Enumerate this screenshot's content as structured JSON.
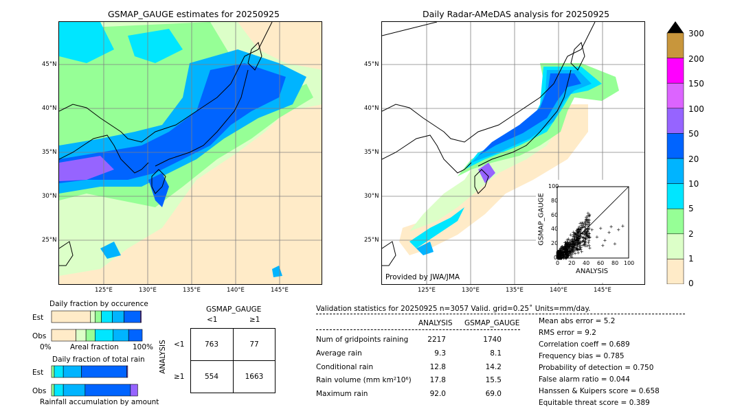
{
  "left_map": {
    "title": "GSMAP_GAUGE estimates for 20250925",
    "lat_ticks": [
      "45°N",
      "40°N",
      "35°N",
      "30°N",
      "25°N"
    ],
    "lon_ticks": [
      "125°E",
      "130°E",
      "135°E",
      "140°E",
      "145°E"
    ]
  },
  "right_map": {
    "title": "Daily Radar-AMeDAS analysis for 20250925",
    "lat_ticks": [
      "45°N",
      "40°N",
      "35°N",
      "30°N",
      "25°N"
    ],
    "lon_ticks": [
      "125°E",
      "130°E",
      "135°E",
      "140°E",
      "145°E"
    ],
    "credit": "Provided by JWA/JMA"
  },
  "colorbar": {
    "labels": [
      "300",
      "200",
      "150",
      "100",
      "50",
      "20",
      "10",
      "5",
      "2",
      "1",
      "0"
    ],
    "colors": [
      "#c8963c",
      "#ff00ff",
      "#dc64ff",
      "#9664ff",
      "#0064ff",
      "#00b4ff",
      "#00e6ff",
      "#96ff96",
      "#dcffc8",
      "#ffebc8"
    ]
  },
  "chart_data": [
    {
      "type": "scatter",
      "title": "",
      "xlabel": "ANALYSIS",
      "ylabel": "GSMAP_GAUGE",
      "xlim": [
        0,
        100
      ],
      "ylim": [
        0,
        100
      ],
      "x_ticks": [
        "0",
        "20",
        "40",
        "60",
        "80",
        "100"
      ],
      "y_ticks": [
        "0",
        "20",
        "40",
        "60",
        "80",
        "100"
      ],
      "diagonal": true,
      "note": "dense cluster of points near origin (0-40), outliers up to ~90"
    },
    {
      "type": "bar",
      "title": "Daily fraction by occurence",
      "rows": [
        "Est",
        "Obs"
      ],
      "x_left_label": "0%",
      "x_center_label": "Areal fraction",
      "x_right_label": "100%",
      "series": [
        {
          "name": "Est",
          "segments": [
            {
              "color": "#ffebc8",
              "value": 0.43
            },
            {
              "color": "#dcffc8",
              "value": 0.05
            },
            {
              "color": "#96ff96",
              "value": 0.07
            },
            {
              "color": "#00e6ff",
              "value": 0.12
            },
            {
              "color": "#00b4ff",
              "value": 0.13
            },
            {
              "color": "#0064ff",
              "value": 0.18
            },
            {
              "color": "#9664ff",
              "value": 0.01
            }
          ]
        },
        {
          "name": "Obs",
          "segments": [
            {
              "color": "#ffebc8",
              "value": 0.27
            },
            {
              "color": "#dcffc8",
              "value": 0.11
            },
            {
              "color": "#96ff96",
              "value": 0.1
            },
            {
              "color": "#00e6ff",
              "value": 0.2
            },
            {
              "color": "#00b4ff",
              "value": 0.17
            },
            {
              "color": "#0064ff",
              "value": 0.15
            }
          ]
        }
      ]
    },
    {
      "type": "bar",
      "title": "Daily fraction of total rain",
      "rows": [
        "Est",
        "Obs"
      ],
      "x_label": "Rainfall accumulation by amount",
      "series": [
        {
          "name": "Est",
          "segments": [
            {
              "color": "#96ff96",
              "value": 0.03
            },
            {
              "color": "#00e6ff",
              "value": 0.1
            },
            {
              "color": "#00b4ff",
              "value": 0.2
            },
            {
              "color": "#0064ff",
              "value": 0.5
            },
            {
              "color": "#9664ff",
              "value": 0.01
            }
          ]
        },
        {
          "name": "Obs",
          "segments": [
            {
              "color": "#96ff96",
              "value": 0.03
            },
            {
              "color": "#00e6ff",
              "value": 0.1
            },
            {
              "color": "#00b4ff",
              "value": 0.24
            },
            {
              "color": "#0064ff",
              "value": 0.5
            },
            {
              "color": "#9664ff",
              "value": 0.08
            }
          ]
        }
      ]
    },
    {
      "type": "table",
      "title": "GSMAP_GAUGE",
      "col_labels": [
        "<1",
        "≥1"
      ],
      "row_title": "ANALYSIS",
      "row_labels": [
        "<1",
        "≥1"
      ],
      "cells": [
        [
          "763",
          "77"
        ],
        [
          "554",
          "1663"
        ]
      ]
    }
  ],
  "validation": {
    "header": "Validation statistics for 20250925  n=3057 Valid. grid=0.25˚ Units=mm/day.",
    "col_analysis": "ANALYSIS",
    "col_gsmap": "GSMAP_GAUGE",
    "rows": [
      {
        "label": "Num of gridpoints raining",
        "analysis": "2217",
        "gsmap": "1740"
      },
      {
        "label": "Average rain",
        "analysis": "9.3",
        "gsmap": "8.1"
      },
      {
        "label": "Conditional rain",
        "analysis": "12.8",
        "gsmap": "14.2"
      },
      {
        "label": "Rain volume (mm km²10⁶)",
        "analysis": "17.8",
        "gsmap": "15.5"
      },
      {
        "label": "Maximum rain",
        "analysis": "92.0",
        "gsmap": "69.0"
      }
    ],
    "scores": [
      "Mean abs error =    5.2",
      "RMS error =    9.2",
      "Correlation coeff =  0.689",
      "Frequency bias =  0.785",
      "Probability of detection =  0.750",
      "False alarm ratio =  0.044",
      "Hanssen & Kuipers score =  0.658",
      "Equitable threat score =  0.389"
    ]
  }
}
